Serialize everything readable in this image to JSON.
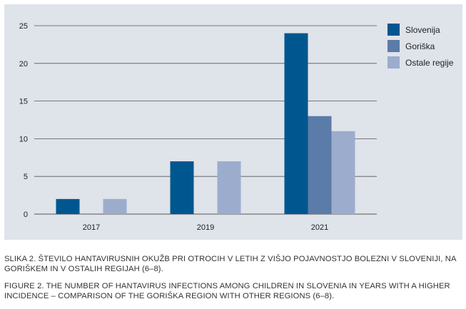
{
  "chart_data": {
    "type": "bar",
    "title": "",
    "xlabel": "",
    "ylabel": "",
    "categories": [
      "2017",
      "2019",
      "2021"
    ],
    "series": [
      {
        "name": "Slovenija",
        "color": "#00578f",
        "values": [
          2,
          7,
          24
        ]
      },
      {
        "name": "Goriška",
        "color": "#5b7ba8",
        "values": [
          0,
          0,
          13
        ]
      },
      {
        "name": "Ostale regije",
        "color": "#9caccd",
        "values": [
          2,
          7,
          11
        ]
      }
    ],
    "ylim": [
      0,
      25
    ],
    "yticks": [
      0,
      5,
      10,
      15,
      20,
      25
    ],
    "grid": true,
    "legend_position": "top-right"
  },
  "captions": {
    "slovene": "SLIKA 2. ŠTEVILO HANTAVIRUSNIH OKUŽB PRI OTROCIH V LETIH Z VIŠJO POJAVNOSTJO BOLEZNI V SLOVENIJI, NA GORIŠKEM IN V OSTALIH REGIJAH (6–8).",
    "english": "FIGURE 2. THE NUMBER OF HANTAVIRUS INFECTIONS AMONG CHILDREN IN SLOVENIA IN YEARS WITH A HIGHER INCIDENCE – COMPARISON OF THE GORIŠKA REGION WITH OTHER REGIONS (6–8)."
  }
}
